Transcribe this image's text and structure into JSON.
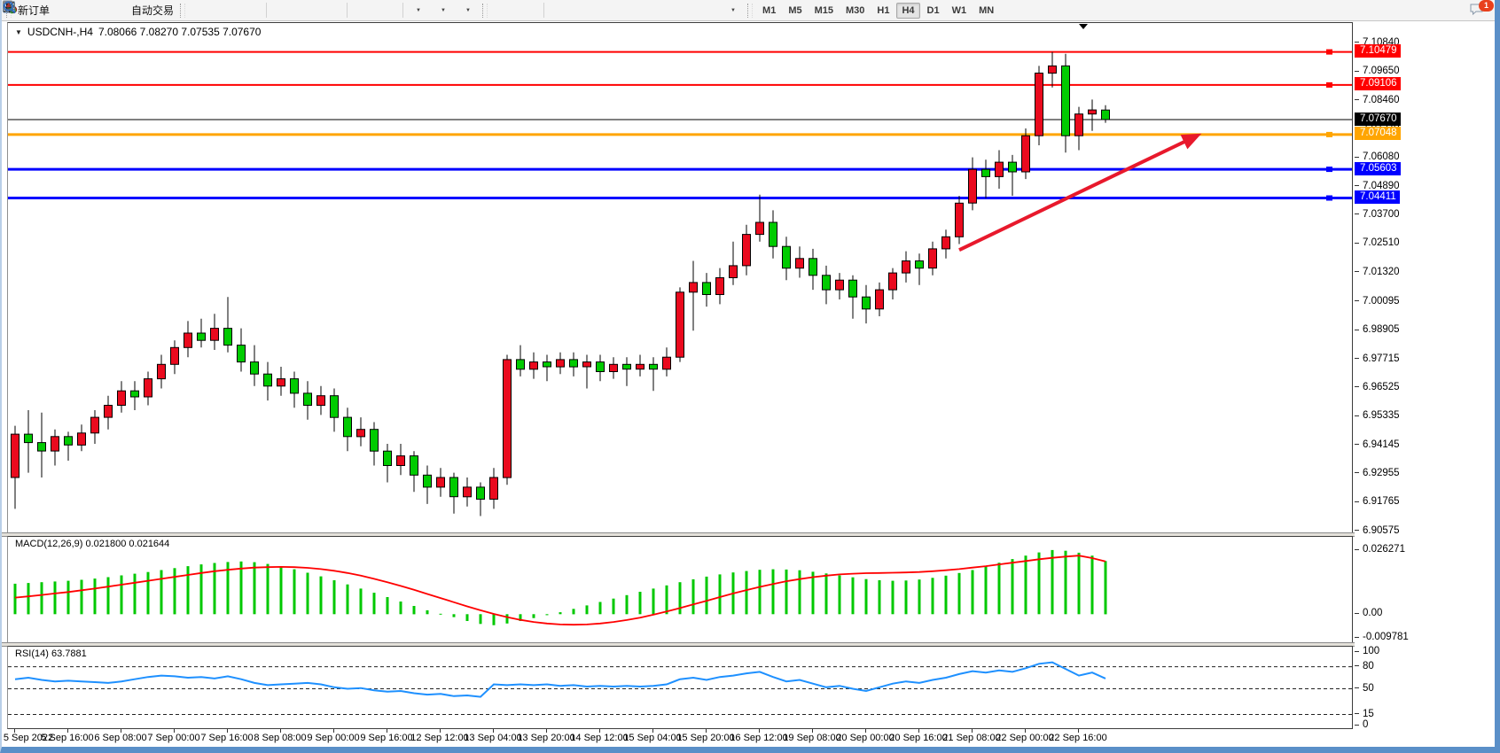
{
  "toolbar": {
    "new_order_label": "新订单",
    "auto_trading_label": "自动交易",
    "timeframes": [
      "M1",
      "M5",
      "M15",
      "M30",
      "H1",
      "H4",
      "D1",
      "W1",
      "MN"
    ],
    "active_timeframe": "H4",
    "notification_count": "1",
    "glyphs": {
      "caret": "▼",
      "text_tool": "A",
      "label_tool": "T",
      "channel": "E",
      "fibo": "F"
    }
  },
  "chart": {
    "collapse_glyph": "▼",
    "title_symbol": "USDCNH-,H4",
    "title_ohlc": "7.08066 7.08270 7.07535 7.07670"
  },
  "colors": {
    "bull": "#ea0a1e",
    "bear": "#00cb00",
    "wick": "#000000",
    "macd_hist": "#00c800",
    "macd_signal": "#ff0000",
    "rsi_line": "#1e90ff",
    "arrow": "#e8192c"
  },
  "chart_data": {
    "type": "candlestick",
    "symbol": "USDCNH-",
    "timeframe": "H4",
    "current_price": "7.07670",
    "ylim": [
      6.9052,
      7.1168
    ],
    "y_ticks": [
      "7.10840",
      "7.09650",
      "7.08460",
      "7.07270",
      "7.06080",
      "7.04890",
      "7.03700",
      "7.02510",
      "7.01320",
      "7.00095",
      "6.98905",
      "6.97715",
      "6.96525",
      "6.95335",
      "6.94145",
      "6.92955",
      "6.91765",
      "6.90575"
    ],
    "x_labels": [
      "5 Sep 2022",
      "5 Sep 16:00",
      "6 Sep 08:00",
      "7 Sep 00:00",
      "7 Sep 16:00",
      "8 Sep 08:00",
      "9 Sep 00:00",
      "9 Sep 16:00",
      "12 Sep 12:00",
      "13 Sep 04:00",
      "13 Sep 20:00",
      "14 Sep 12:00",
      "15 Sep 04:00",
      "15 Sep 20:00",
      "16 Sep 12:00",
      "19 Sep 08:00",
      "20 Sep 00:00",
      "20 Sep 16:00",
      "21 Sep 08:00",
      "22 Sep 00:00",
      "22 Sep 16:00"
    ],
    "bars_per_label": 4,
    "hlines": [
      {
        "price": 7.10479,
        "label": "7.10479",
        "color": "#ff0000",
        "width": 2,
        "handle": true
      },
      {
        "price": 7.09106,
        "label": "7.09106",
        "color": "#ff0000",
        "width": 2,
        "handle": true
      },
      {
        "price": 7.0767,
        "label": "7.07670",
        "color": "#000000",
        "width": 1,
        "handle": false
      },
      {
        "price": 7.07048,
        "label": "7.07048",
        "color": "#ffa500",
        "width": 3,
        "handle": true
      },
      {
        "price": 7.05603,
        "label": "7.05603",
        "color": "#0000ff",
        "width": 3,
        "handle": true
      },
      {
        "price": 7.04411,
        "label": "7.04411",
        "color": "#0000ff",
        "width": 3,
        "handle": true
      }
    ],
    "trend_arrow": {
      "from_bar": 71,
      "from_price": 7.0225,
      "to_bar": 88.5,
      "to_price": 7.069
    },
    "candles": [
      [
        6.928,
        6.9495,
        6.915,
        6.946
      ],
      [
        6.946,
        6.956,
        6.93,
        6.9425
      ],
      [
        6.9425,
        6.955,
        6.928,
        6.939
      ],
      [
        6.939,
        6.948,
        6.933,
        6.945
      ],
      [
        6.945,
        6.947,
        6.935,
        6.9415
      ],
      [
        6.9415,
        6.95,
        6.939,
        6.9465
      ],
      [
        6.9465,
        6.956,
        6.942,
        6.953
      ],
      [
        6.953,
        6.962,
        6.948,
        6.958
      ],
      [
        6.958,
        6.968,
        6.955,
        6.964
      ],
      [
        6.964,
        6.968,
        6.956,
        6.9615
      ],
      [
        6.9615,
        6.972,
        6.958,
        6.969
      ],
      [
        6.969,
        6.979,
        6.965,
        6.975
      ],
      [
        6.975,
        6.985,
        6.971,
        6.982
      ],
      [
        6.982,
        6.993,
        6.978,
        6.988
      ],
      [
        6.988,
        6.994,
        6.982,
        6.985
      ],
      [
        6.985,
        6.996,
        6.981,
        6.99
      ],
      [
        6.99,
        7.003,
        6.98,
        6.983
      ],
      [
        6.983,
        6.99,
        6.972,
        6.976
      ],
      [
        6.976,
        6.983,
        6.966,
        6.971
      ],
      [
        6.971,
        6.976,
        6.96,
        6.966
      ],
      [
        6.966,
        6.974,
        6.962,
        6.969
      ],
      [
        6.969,
        6.972,
        6.957,
        6.963
      ],
      [
        6.963,
        6.968,
        6.952,
        6.958
      ],
      [
        6.958,
        6.966,
        6.954,
        6.962
      ],
      [
        6.962,
        6.965,
        6.947,
        6.953
      ],
      [
        6.953,
        6.957,
        6.939,
        6.945
      ],
      [
        6.945,
        6.953,
        6.941,
        6.948
      ],
      [
        6.948,
        6.951,
        6.933,
        6.939
      ],
      [
        6.939,
        6.942,
        6.926,
        6.933
      ],
      [
        6.933,
        6.942,
        6.929,
        6.937
      ],
      [
        6.937,
        6.939,
        6.922,
        6.929
      ],
      [
        6.929,
        6.933,
        6.917,
        6.924
      ],
      [
        6.924,
        6.932,
        6.92,
        6.928
      ],
      [
        6.928,
        6.93,
        6.913,
        6.92
      ],
      [
        6.92,
        6.928,
        6.916,
        6.924
      ],
      [
        6.924,
        6.926,
        6.912,
        6.919
      ],
      [
        6.919,
        6.932,
        6.915,
        6.928
      ],
      [
        6.928,
        6.979,
        6.925,
        6.977
      ],
      [
        6.977,
        6.983,
        6.97,
        6.973
      ],
      [
        6.973,
        6.98,
        6.969,
        6.976
      ],
      [
        6.976,
        6.979,
        6.968,
        6.974
      ],
      [
        6.974,
        6.98,
        6.971,
        6.977
      ],
      [
        6.977,
        6.98,
        6.97,
        6.974
      ],
      [
        6.974,
        6.979,
        6.965,
        6.976
      ],
      [
        6.976,
        6.979,
        6.968,
        6.972
      ],
      [
        6.972,
        6.978,
        6.969,
        6.975
      ],
      [
        6.975,
        6.978,
        6.966,
        6.973
      ],
      [
        6.973,
        6.979,
        6.97,
        6.975
      ],
      [
        6.975,
        6.978,
        6.964,
        6.973
      ],
      [
        6.973,
        6.982,
        6.97,
        6.978
      ],
      [
        6.978,
        7.007,
        6.976,
        7.005
      ],
      [
        7.005,
        7.018,
        6.989,
        7.009
      ],
      [
        7.009,
        7.013,
        6.999,
        7.004
      ],
      [
        7.004,
        7.015,
        7.0,
        7.011
      ],
      [
        7.011,
        7.026,
        7.008,
        7.016
      ],
      [
        7.016,
        7.033,
        7.012,
        7.029
      ],
      [
        7.029,
        7.0455,
        7.026,
        7.034
      ],
      [
        7.034,
        7.039,
        7.019,
        7.024
      ],
      [
        7.024,
        7.028,
        7.01,
        7.015
      ],
      [
        7.015,
        7.024,
        7.011,
        7.019
      ],
      [
        7.019,
        7.023,
        7.006,
        7.012
      ],
      [
        7.012,
        7.016,
        7.0,
        7.006
      ],
      [
        7.006,
        7.013,
        7.002,
        7.01
      ],
      [
        7.01,
        7.012,
        6.994,
        7.003
      ],
      [
        7.003,
        7.008,
        6.992,
        6.998
      ],
      [
        6.998,
        7.009,
        6.995,
        7.006
      ],
      [
        7.006,
        7.015,
        7.002,
        7.013
      ],
      [
        7.013,
        7.022,
        7.009,
        7.018
      ],
      [
        7.018,
        7.021,
        7.008,
        7.015
      ],
      [
        7.015,
        7.026,
        7.012,
        7.023
      ],
      [
        7.023,
        7.031,
        7.019,
        7.028
      ],
      [
        7.028,
        7.045,
        7.025,
        7.042
      ],
      [
        7.042,
        7.061,
        7.039,
        7.056
      ],
      [
        7.056,
        7.06,
        7.044,
        7.053
      ],
      [
        7.053,
        7.064,
        7.048,
        7.059
      ],
      [
        7.059,
        7.062,
        7.045,
        7.055
      ],
      [
        7.055,
        7.073,
        7.052,
        7.07
      ],
      [
        7.07,
        7.099,
        7.066,
        7.096
      ],
      [
        7.096,
        7.1048,
        7.09,
        7.099
      ],
      [
        7.099,
        7.104,
        7.063,
        7.07
      ],
      [
        7.07,
        7.082,
        7.064,
        7.079
      ],
      [
        7.079,
        7.085,
        7.072,
        7.0807
      ],
      [
        7.08066,
        7.0827,
        7.07535,
        7.0767
      ]
    ],
    "indicators": [
      {
        "name": "MACD",
        "label": "MACD(12,26,9) 0.021800 0.021644",
        "ylim": [
          -0.0115,
          0.0317
        ],
        "y_ticks": [
          {
            "v": 0.026271,
            "t": "0.026271"
          },
          {
            "v": 0,
            "t": "0.00"
          },
          {
            "v": -0.009781,
            "t": "-0.009781"
          }
        ],
        "hist": [
          0.0125,
          0.0128,
          0.0131,
          0.0134,
          0.0137,
          0.0141,
          0.0146,
          0.0152,
          0.0159,
          0.0166,
          0.0173,
          0.0181,
          0.0189,
          0.0197,
          0.0204,
          0.021,
          0.0214,
          0.0216,
          0.0213,
          0.0206,
          0.0196,
          0.0184,
          0.017,
          0.0155,
          0.0139,
          0.0122,
          0.0105,
          0.0088,
          0.007,
          0.0052,
          0.0034,
          0.0016,
          0.0002,
          -0.0012,
          -0.0028,
          -0.004,
          -0.0045,
          -0.0038,
          -0.0028,
          -0.0016,
          -0.0004,
          0.0008,
          0.0022,
          0.0036,
          0.005,
          0.0064,
          0.0078,
          0.0092,
          0.0105,
          0.0118,
          0.0131,
          0.0143,
          0.0154,
          0.0163,
          0.0171,
          0.0177,
          0.0182,
          0.0184,
          0.0183,
          0.018,
          0.0174,
          0.0167,
          0.0159,
          0.0151,
          0.0144,
          0.0139,
          0.0137,
          0.0138,
          0.0142,
          0.0149,
          0.0158,
          0.0169,
          0.0181,
          0.0196,
          0.0211,
          0.0226,
          0.024,
          0.0253,
          0.0263,
          0.026,
          0.0252,
          0.024,
          0.0218
        ],
        "signal": [
          0.0068,
          0.0073,
          0.0079,
          0.0085,
          0.0091,
          0.0098,
          0.0105,
          0.0113,
          0.0121,
          0.0129,
          0.0137,
          0.0145,
          0.0153,
          0.0161,
          0.0169,
          0.0176,
          0.0182,
          0.0187,
          0.0191,
          0.0193,
          0.0194,
          0.0193,
          0.019,
          0.0185,
          0.0178,
          0.0169,
          0.0158,
          0.0145,
          0.0131,
          0.0116,
          0.01,
          0.0083,
          0.0066,
          0.0049,
          0.0032,
          0.0016,
          0.0001,
          -0.0012,
          -0.0023,
          -0.0032,
          -0.0038,
          -0.0042,
          -0.0043,
          -0.0042,
          -0.0038,
          -0.0032,
          -0.0024,
          -0.0014,
          -0.0002,
          0.0011,
          0.0025,
          0.004,
          0.0055,
          0.007,
          0.0085,
          0.0099,
          0.0112,
          0.0124,
          0.0135,
          0.0144,
          0.0152,
          0.0158,
          0.0163,
          0.0166,
          0.0168,
          0.0169,
          0.017,
          0.0171,
          0.0173,
          0.0176,
          0.018,
          0.0185,
          0.0191,
          0.0197,
          0.0204,
          0.0211,
          0.0218,
          0.0225,
          0.0231,
          0.0236,
          0.024,
          0.023,
          0.0216
        ]
      },
      {
        "name": "RSI",
        "label": "RSI(14) 63.7881",
        "ylim": [
          0,
          100
        ],
        "y_ticks": [
          {
            "v": 100,
            "t": "100"
          },
          {
            "v": 80,
            "t": "80"
          },
          {
            "v": 50,
            "t": "50"
          },
          {
            "v": 15,
            "t": "15"
          },
          {
            "v": 0,
            "t": "0"
          }
        ],
        "levels": [
          80,
          50,
          15
        ],
        "values": [
          63,
          65,
          62,
          60,
          61,
          60,
          59,
          58,
          60,
          63,
          66,
          68,
          67,
          65,
          66,
          64,
          67,
          63,
          58,
          55,
          56,
          57,
          58,
          56,
          52,
          50,
          51,
          48,
          46,
          47,
          44,
          42,
          43,
          40,
          41,
          39,
          56,
          55,
          56,
          55,
          56,
          54,
          55,
          53,
          54,
          53,
          54,
          53,
          54,
          56,
          63,
          65,
          62,
          66,
          68,
          71,
          73,
          66,
          60,
          62,
          57,
          52,
          54,
          50,
          47,
          52,
          57,
          60,
          58,
          62,
          65,
          70,
          74,
          72,
          75,
          73,
          78,
          84,
          86,
          77,
          68,
          72,
          64
        ]
      }
    ]
  }
}
